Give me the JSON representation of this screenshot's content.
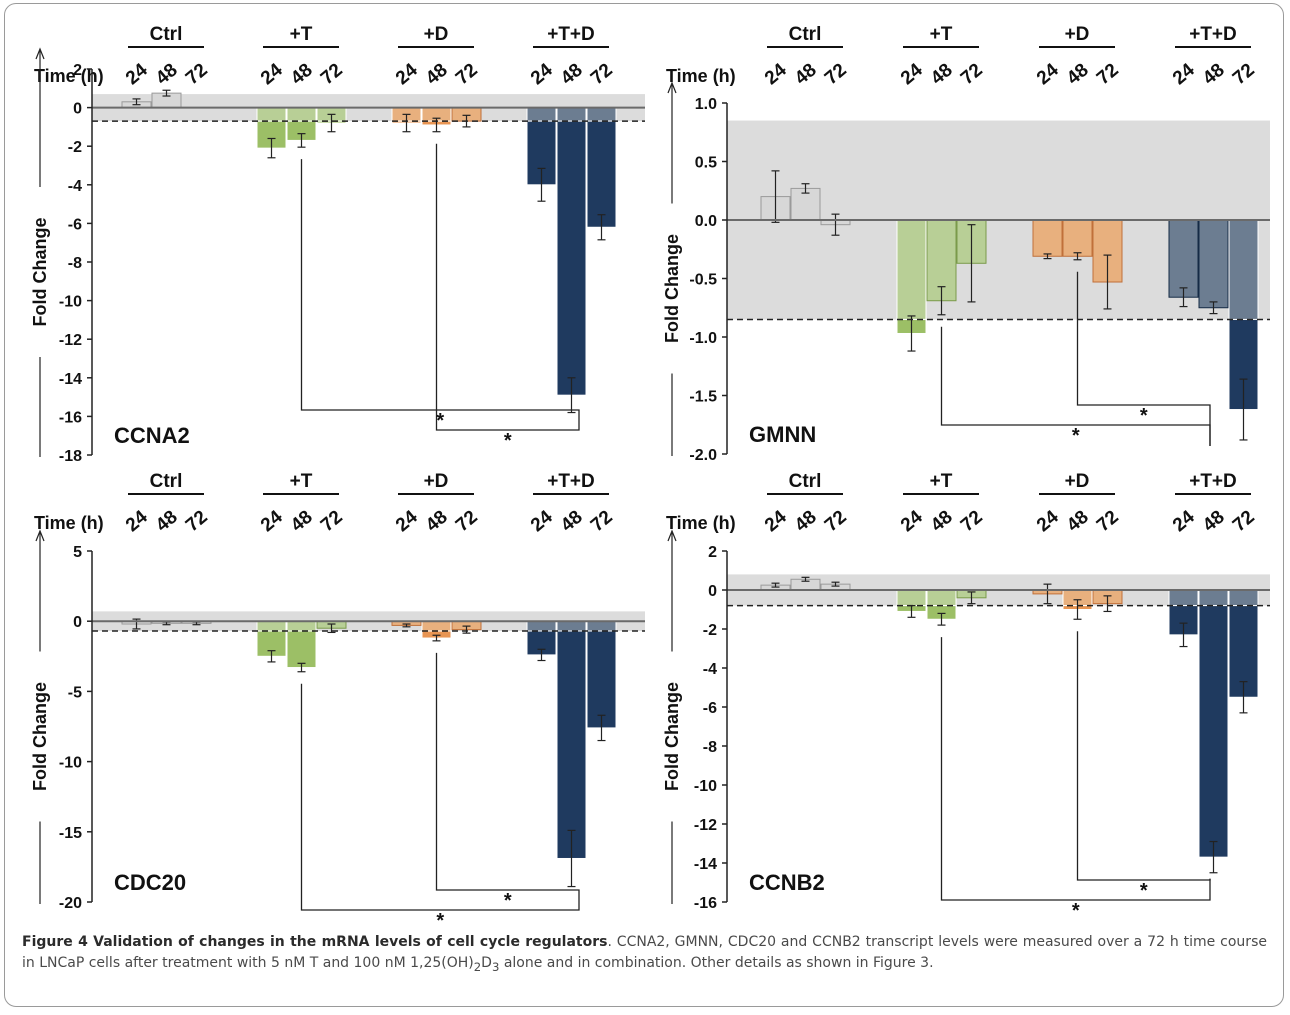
{
  "chart_data": [
    {
      "type": "bar",
      "gene": "CCNA2",
      "ylabel": "Fold Change",
      "time_label": "Time (h)",
      "ylim": [
        -18,
        2
      ],
      "yticks": [
        2,
        0,
        -2,
        -4,
        -6,
        -8,
        -10,
        -12,
        -14,
        -16,
        -18
      ],
      "ytick_labels": [
        "2",
        "0",
        "-2",
        "-4",
        "-6",
        "-8",
        "-10",
        "-12",
        "-14",
        "-16",
        "-18"
      ],
      "threshold": -0.7,
      "shade": [
        -0.7,
        0.7
      ],
      "groups": [
        "Ctrl",
        "+T",
        "+D",
        "+T+D"
      ],
      "times": [
        "24",
        "48",
        "72"
      ],
      "values": [
        [
          0.3,
          0.75,
          null
        ],
        [
          -2.1,
          -1.7,
          -0.8
        ],
        [
          -0.8,
          -0.9,
          -0.7
        ],
        [
          -4.0,
          -14.9,
          -6.2
        ]
      ],
      "errors": [
        [
          0.15,
          0.15,
          null
        ],
        [
          0.5,
          0.35,
          0.45
        ],
        [
          0.45,
          0.35,
          0.3
        ],
        [
          0.85,
          0.9,
          0.65
        ]
      ],
      "significance": [
        {
          "from": [
            2,
            1
          ],
          "to": [
            3,
            1
          ],
          "label": "*"
        },
        {
          "from": [
            1,
            1
          ],
          "to": [
            3,
            1
          ],
          "label": "*"
        }
      ]
    },
    {
      "type": "bar",
      "gene": "GMNN",
      "ylabel": "Fold Change",
      "time_label": "Time (h)",
      "ylim": [
        -2.0,
        1.0
      ],
      "yticks": [
        1.0,
        0.5,
        0.0,
        -0.5,
        -1.0,
        -1.5,
        -2.0
      ],
      "ytick_labels": [
        "1.0",
        "0.5",
        "0.0",
        "-0.5",
        "-1.0",
        "-1.5",
        "-2.0"
      ],
      "threshold": -0.85,
      "shade": [
        -0.85,
        0.85
      ],
      "groups": [
        "Ctrl",
        "+T",
        "+D",
        "+T+D"
      ],
      "times": [
        "24",
        "48",
        "72"
      ],
      "values": [
        [
          0.2,
          0.27,
          -0.04
        ],
        [
          -0.97,
          -0.69,
          -0.37
        ],
        [
          -0.31,
          -0.31,
          -0.53
        ],
        [
          -0.66,
          -0.75,
          -1.62
        ]
      ],
      "errors": [
        [
          0.22,
          0.04,
          0.09
        ],
        [
          0.15,
          0.12,
          0.33
        ],
        [
          0.02,
          0.03,
          0.23
        ],
        [
          0.08,
          0.05,
          0.26
        ]
      ],
      "significance": [
        {
          "from": [
            2,
            1
          ],
          "to": [
            3,
            2
          ],
          "label": "*"
        },
        {
          "from": [
            1,
            1
          ],
          "to": [
            3,
            2
          ],
          "label": "*"
        }
      ]
    },
    {
      "type": "bar",
      "gene": "CDC20",
      "ylabel": "Fold Change",
      "time_label": "Time (h)",
      "ylim": [
        -20,
        5
      ],
      "yticks": [
        5,
        0,
        -5,
        -10,
        -15,
        -20
      ],
      "ytick_labels": [
        "5",
        "0",
        "-5",
        "-10",
        "-15",
        "-20"
      ],
      "threshold": -0.7,
      "shade": [
        -0.7,
        0.7
      ],
      "groups": [
        "Ctrl",
        "+T",
        "+D",
        "+T+D"
      ],
      "times": [
        "24",
        "48",
        "72"
      ],
      "values": [
        [
          -0.2,
          -0.15,
          -0.15
        ],
        [
          -2.5,
          -3.3,
          -0.5
        ],
        [
          -0.3,
          -1.2,
          -0.6
        ],
        [
          -2.4,
          -16.9,
          -7.6
        ]
      ],
      "errors": [
        [
          0.35,
          0.1,
          0.1
        ],
        [
          0.4,
          0.3,
          0.3
        ],
        [
          0.1,
          0.2,
          0.25
        ],
        [
          0.4,
          2.0,
          0.9
        ]
      ],
      "significance": [
        {
          "from": [
            2,
            1
          ],
          "to": [
            3,
            1
          ],
          "label": "*"
        },
        {
          "from": [
            1,
            1
          ],
          "to": [
            3,
            1
          ],
          "label": "*"
        }
      ]
    },
    {
      "type": "bar",
      "gene": "CCNB2",
      "ylabel": "Fold Change",
      "time_label": "Time (h)",
      "ylim": [
        -16,
        2
      ],
      "yticks": [
        2,
        0,
        -2,
        -4,
        -6,
        -8,
        -10,
        -12,
        -14,
        -16
      ],
      "ytick_labels": [
        "2",
        "0",
        "-2",
        "-4",
        "-6",
        "-8",
        "-10",
        "-12",
        "-14",
        "-16"
      ],
      "threshold": -0.8,
      "shade": [
        -0.8,
        0.8
      ],
      "groups": [
        "Ctrl",
        "+T",
        "+D",
        "+T+D"
      ],
      "times": [
        "24",
        "48",
        "72"
      ],
      "values": [
        [
          0.25,
          0.55,
          0.3
        ],
        [
          -1.1,
          -1.5,
          -0.4
        ],
        [
          -0.2,
          -1.0,
          -0.7
        ],
        [
          -2.3,
          -13.7,
          -5.5
        ]
      ],
      "errors": [
        [
          0.1,
          0.1,
          0.1
        ],
        [
          0.3,
          0.3,
          0.3
        ],
        [
          0.5,
          0.5,
          0.4
        ],
        [
          0.6,
          0.8,
          0.8
        ]
      ],
      "significance": [
        {
          "from": [
            2,
            1
          ],
          "to": [
            3,
            1
          ],
          "label": "*"
        },
        {
          "from": [
            1,
            1
          ],
          "to": [
            3,
            1
          ],
          "label": "*"
        }
      ]
    }
  ],
  "colors": {
    "ctrl": "#d7d7d7",
    "t": "#9cbf66",
    "t_light": "#b8cf96",
    "d": "#e89553",
    "d_light": "#e8b07e",
    "td": "#1f3a5f",
    "td_light": "#6c7d91",
    "shade": "#dcdcdc",
    "axis": "#6a6a6a"
  },
  "caption": {
    "title": "Figure 4 Validation of changes in the mRNA levels of cell cycle regulators",
    "text": ". CCNA2, GMNN, CDC20 and CCNB2 transcript levels were measured over a 72 h time course in LNCaP cells after treatment with 5 nM T and 100 nM 1,25(OH)",
    "sub1": "2",
    "mid": "D",
    "sub2": "3",
    "tail": " alone and in combination. Other details as shown in Figure 3."
  }
}
